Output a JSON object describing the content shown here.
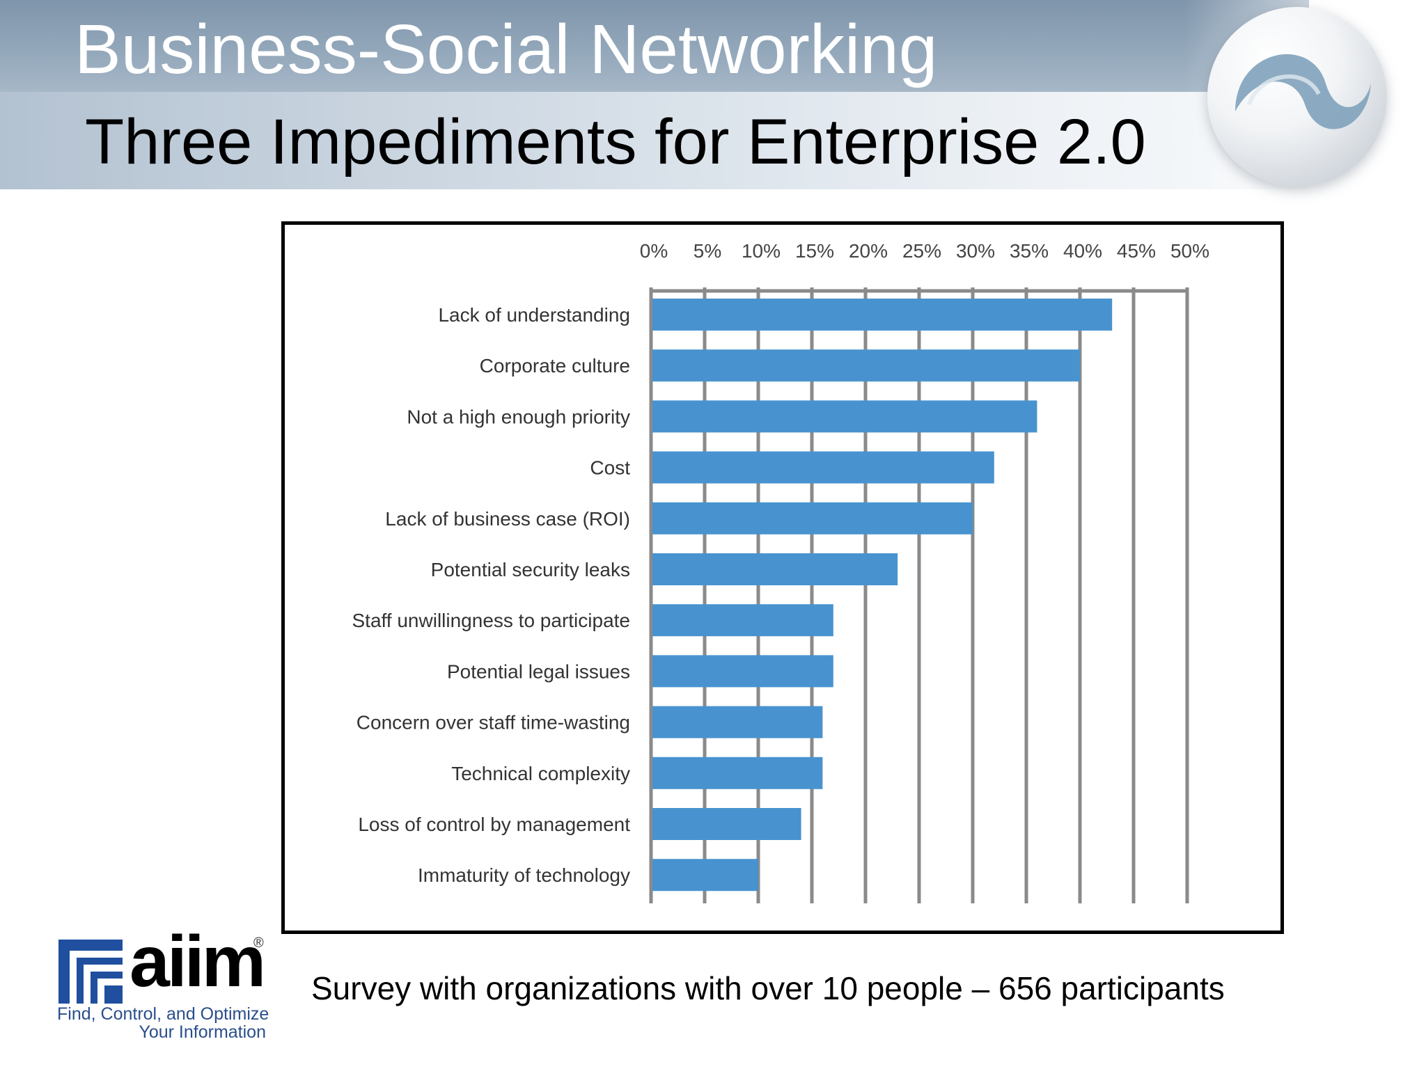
{
  "header": {
    "title": "Business-Social Networking",
    "subtitle": "Three Impediments for Enterprise 2.0"
  },
  "footer": {
    "note": "Survey with organizations with over 10 people – 656 participants"
  },
  "logo": {
    "name": "aiim",
    "registered": "®",
    "tagline_line1": "Find, Control, and Optimize",
    "tagline_line2": "Your Information"
  },
  "colors": {
    "bar": "#4893cf",
    "grid": "#8a8a8a",
    "logo_blue": "#1f4f9e"
  },
  "chart_data": {
    "type": "bar",
    "orientation": "horizontal",
    "categories": [
      "Lack of understanding",
      "Corporate culture",
      "Not a high enough priority",
      "Cost",
      "Lack of business case (ROI)",
      "Potential security leaks",
      "Staff unwillingness to participate",
      "Potential legal issues",
      "Concern over staff time-wasting",
      "Technical complexity",
      "Loss of control by management",
      "Immaturity of technology"
    ],
    "values": [
      43,
      40,
      36,
      32,
      30,
      23,
      17,
      17,
      16,
      16,
      14,
      10
    ],
    "xlim": [
      0,
      50
    ],
    "xticks": [
      "0%",
      "5%",
      "10%",
      "15%",
      "20%",
      "25%",
      "30%",
      "35%",
      "40%",
      "45%",
      "50%"
    ],
    "axis_position": "top",
    "grid": true
  }
}
